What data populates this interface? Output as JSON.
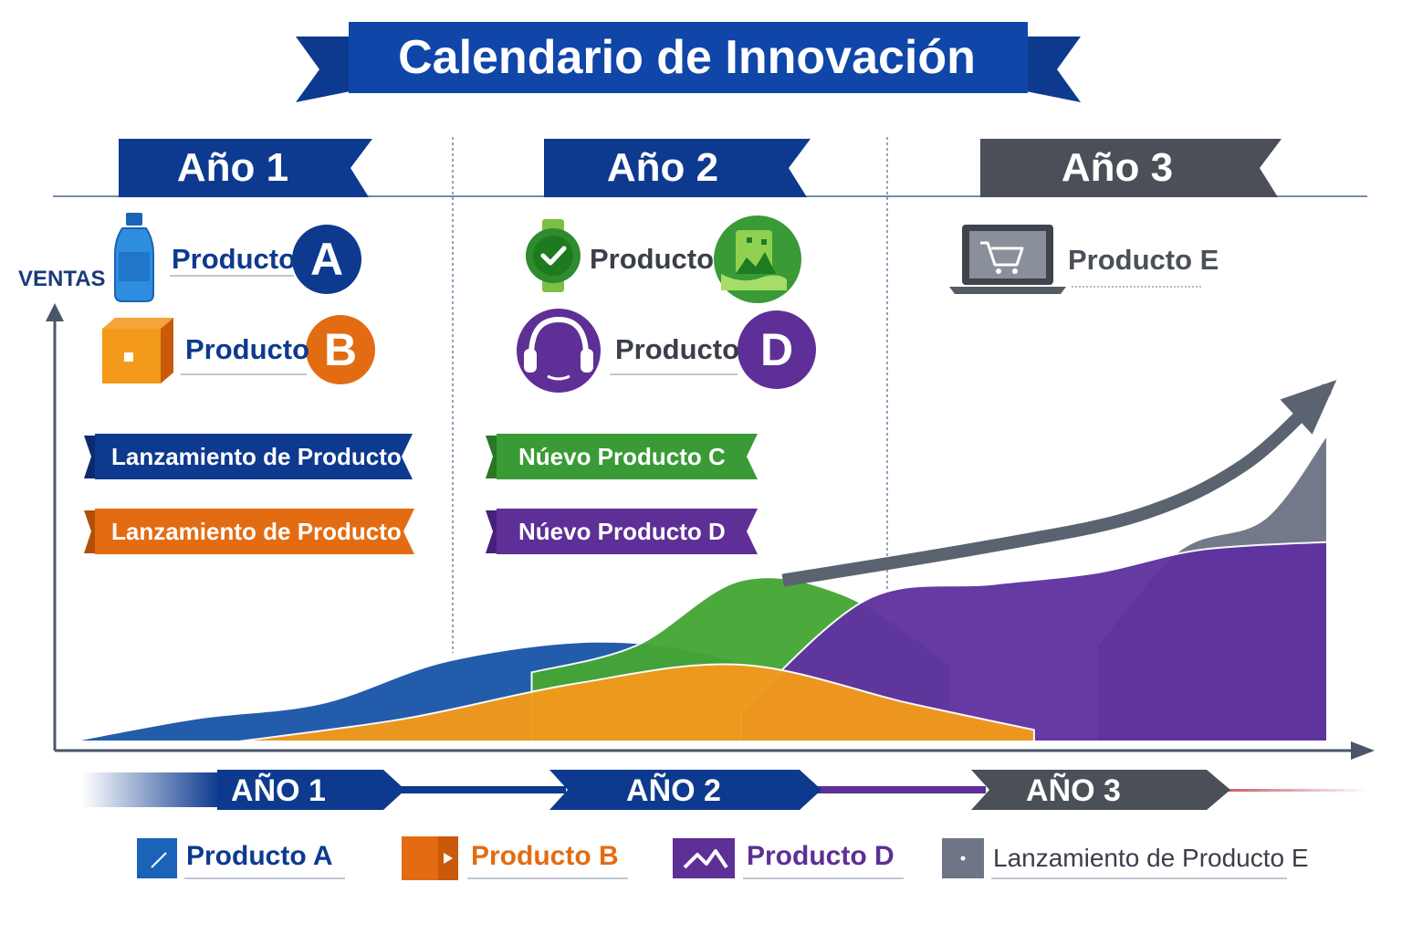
{
  "title": "Calendario de Innovación",
  "years": [
    {
      "label": "Año 1",
      "color": "#0d3a8f"
    },
    {
      "label": "Año 2",
      "color": "#0d3a8f"
    },
    {
      "label": "Año 3",
      "color": "#4a4f58"
    }
  ],
  "products_top": [
    {
      "word": "Producto",
      "letter": "A",
      "color": "#0d3a8f",
      "icon": "water-bottle-icon"
    },
    {
      "word": "Producto",
      "letter": "B",
      "color": "#e36c12",
      "icon": "orange-box-icon"
    },
    {
      "word": "Producto",
      "letter": "",
      "color": "#3a9a35",
      "icon": "smartwatch-check-icon",
      "badge_icon": "green-landscape-card-icon"
    },
    {
      "word": "Producto",
      "letter": "D",
      "color": "#5e2f96",
      "icon": "headphones-icon"
    },
    {
      "word": "Producto E",
      "letter": "",
      "color": "#4a4f58",
      "icon": "laptop-cart-icon"
    }
  ],
  "ribbons": [
    {
      "text": "Lanzamiento de Producto A",
      "color": "#0d3a8f"
    },
    {
      "text": "Lanzamiento de Producto B",
      "color": "#e36c12"
    },
    {
      "text": "Núevo Producto C",
      "color": "#3a9a35"
    },
    {
      "text": "Núevo Producto D",
      "color": "#5e2f96"
    }
  ],
  "chart_data": {
    "type": "area",
    "ylabel": "VENTAS",
    "xlabel": "",
    "categories": [
      "AÑO 1",
      "AÑO 2",
      "AÑO 3"
    ],
    "ylim": [
      0,
      100
    ],
    "xlim": [
      0,
      3
    ],
    "grid": false,
    "trend_arrow": {
      "color": "#5b6270",
      "x": [
        1.7,
        2.2,
        2.55,
        2.8,
        3.0
      ],
      "y": [
        42,
        51,
        59,
        72,
        92
      ]
    },
    "series": [
      {
        "name": "Producto A",
        "color": "#1b56a8",
        "x": [
          0,
          0.3,
          0.6,
          0.9,
          1.25,
          1.55,
          1.8
        ],
        "y": [
          0,
          6,
          10,
          21,
          26,
          22,
          10
        ]
      },
      {
        "name": "Producto B",
        "color": "#f39a1a",
        "x": [
          0.4,
          0.8,
          1.2,
          1.6,
          2.0,
          2.3
        ],
        "y": [
          0,
          6,
          15,
          20,
          10,
          3
        ]
      },
      {
        "name": "",
        "color": "#45a634",
        "x": [
          1.1,
          1.35,
          1.6,
          1.85,
          2.1
        ],
        "y": [
          18,
          25,
          42,
          38,
          20
        ]
      },
      {
        "name": "Producto D",
        "color": "#5f32a0",
        "x": [
          1.6,
          1.9,
          2.2,
          2.45,
          2.7,
          3.0
        ],
        "y": [
          8,
          37,
          41,
          44,
          50,
          52
        ]
      },
      {
        "name": "Lanzamiento de Producto E",
        "color": "#6d7586",
        "x": [
          2.45,
          2.65,
          2.85,
          3.0
        ],
        "y": [
          25,
          50,
          58,
          80
        ]
      }
    ]
  },
  "axis_years": [
    "AÑO 1",
    "AÑO 2",
    "AÑO 3"
  ],
  "legend": [
    {
      "label": "Producto A",
      "color": "#1b63b8",
      "icon": "blue-square-icon"
    },
    {
      "label": "Producto B",
      "color": "#e36c12",
      "icon": "orange-box-play-icon"
    },
    {
      "label": "Producto D",
      "color": "#5e2f96",
      "icon": "purple-mountain-icon"
    },
    {
      "label": "Lanzamiento de Producto E",
      "color": "#6d7586",
      "icon": "gray-square-icon"
    }
  ]
}
